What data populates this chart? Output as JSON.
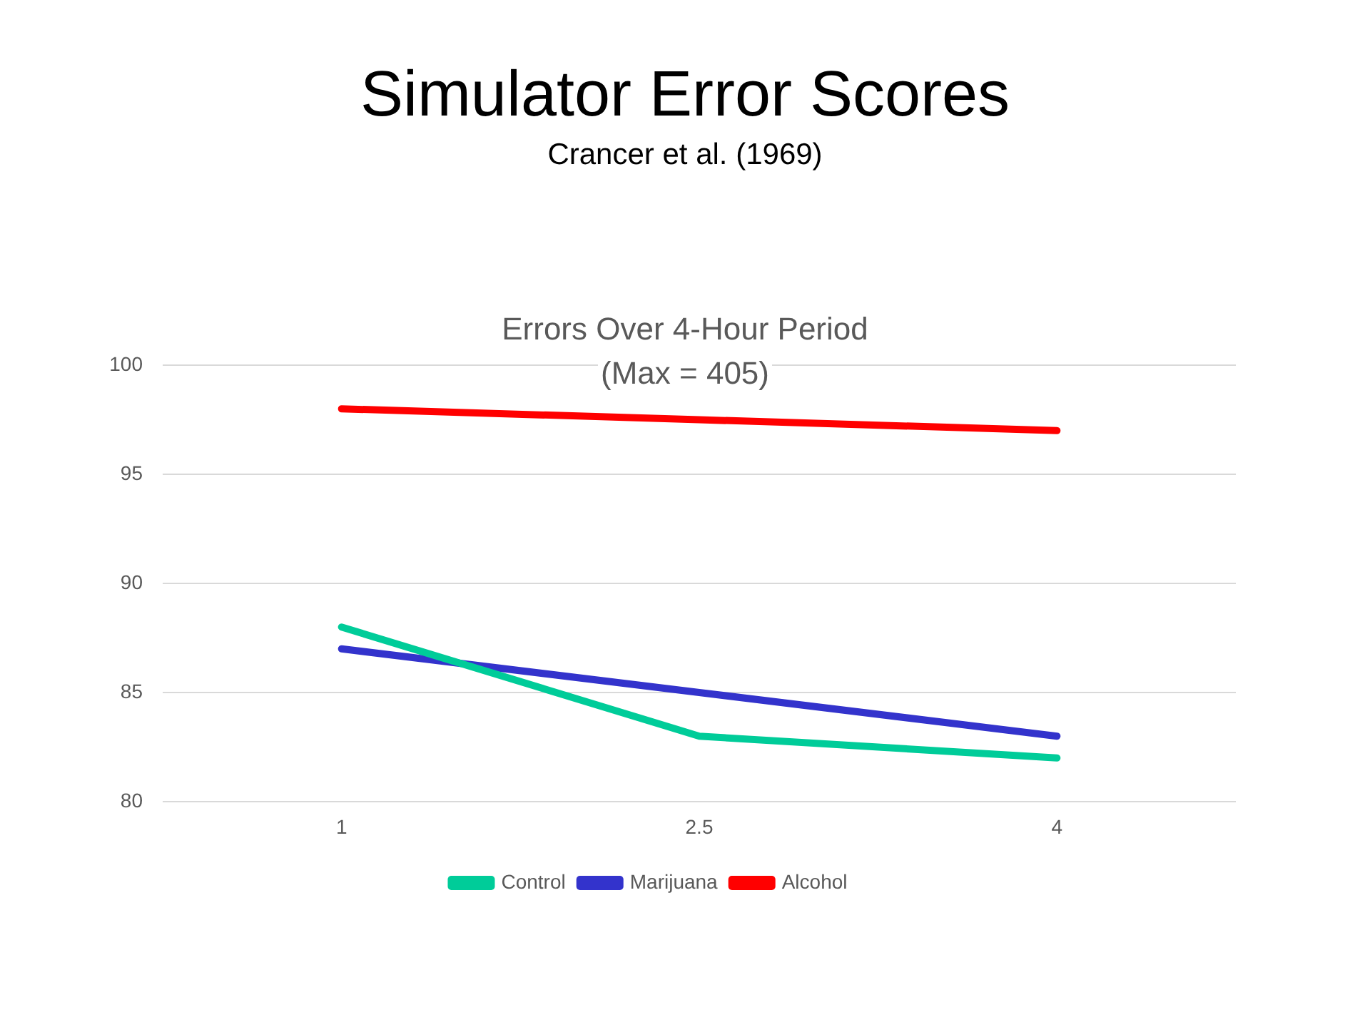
{
  "chart_data": {
    "type": "line",
    "title": "Simulator Error Scores",
    "subtitle": "Crancer et al. (1969)",
    "annotations": [
      "Errors Over 4-Hour Period",
      "(Max = 405)"
    ],
    "categories": [
      "1",
      "2.5",
      "4"
    ],
    "series": [
      {
        "name": "Control",
        "color": "#00cc99",
        "values": [
          88,
          83,
          82
        ]
      },
      {
        "name": "Marijuana",
        "color": "#3333cc",
        "values": [
          87,
          85,
          83
        ]
      },
      {
        "name": "Alcohol",
        "color": "#ff0000",
        "values": [
          98,
          97.5,
          97
        ]
      }
    ],
    "ylim": [
      80,
      100
    ],
    "yticks": [
      80,
      85,
      90,
      95,
      100
    ],
    "grid": "y",
    "legend": "bottom",
    "marker": "none",
    "line_style": "solid"
  }
}
